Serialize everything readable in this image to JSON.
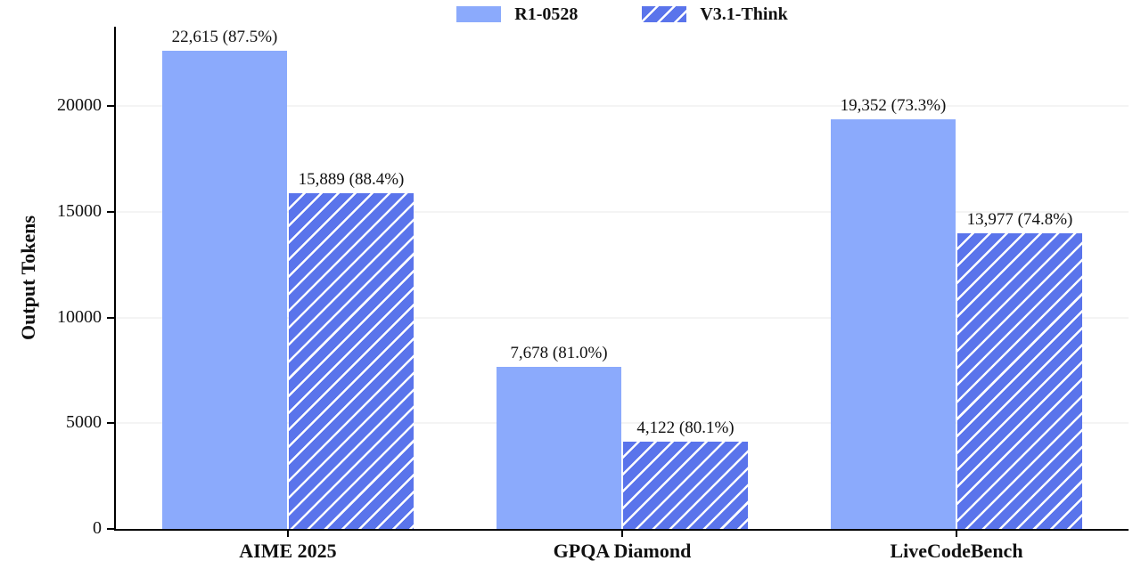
{
  "chart_data": {
    "type": "bar",
    "title": "",
    "xlabel": "",
    "ylabel": "Output Tokens",
    "ylim": [
      0,
      23750
    ],
    "yticks": [
      0,
      5000,
      10000,
      15000,
      20000
    ],
    "categories": [
      "AIME 2025",
      "GPQA Diamond",
      "LiveCodeBench"
    ],
    "series": [
      {
        "name": "R1-0528",
        "style": "solid",
        "color": "#8baafc",
        "values": [
          22615,
          7678,
          19352
        ],
        "labels": [
          "22,615 (87.5%)",
          "7,678 (81.0%)",
          "19,352 (73.3%)"
        ]
      },
      {
        "name": "V3.1-Think",
        "style": "hatched",
        "color": "#5a74eb",
        "hatch_color": "#ffffff",
        "hatch_pattern": "/",
        "values": [
          15889,
          4122,
          13977
        ],
        "labels": [
          "15,889 (88.4%)",
          "4,122 (80.1%)",
          "13,977 (74.8%)"
        ]
      }
    ],
    "legend_position": "top-center",
    "grid": "horizontal",
    "grid_color": "#f4f4f4",
    "axis_color": "#000000"
  }
}
